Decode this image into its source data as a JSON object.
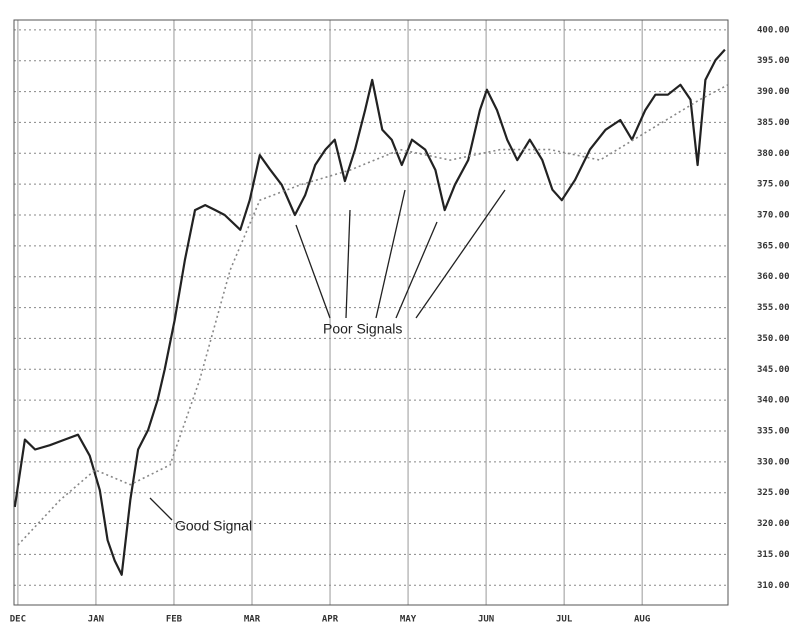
{
  "chart_data": {
    "type": "line",
    "xlim": [
      -0.05,
      9.1
    ],
    "ylim": [
      306.8,
      401.6
    ],
    "xticks": [
      {
        "value": 0,
        "label": "DEC"
      },
      {
        "value": 1,
        "label": "JAN"
      },
      {
        "value": 2,
        "label": "FEB"
      },
      {
        "value": 3,
        "label": "MAR"
      },
      {
        "value": 4,
        "label": "APR"
      },
      {
        "value": 5,
        "label": "MAY"
      },
      {
        "value": 6,
        "label": "JUN"
      },
      {
        "value": 7,
        "label": "JUL"
      },
      {
        "value": 8,
        "label": "AUG"
      }
    ],
    "yticks": [
      {
        "value": 400,
        "label": "400.00"
      },
      {
        "value": 395,
        "label": "395.00"
      },
      {
        "value": 390,
        "label": "390.00"
      },
      {
        "value": 385,
        "label": "385.00"
      },
      {
        "value": 380,
        "label": "380.00"
      },
      {
        "value": 375,
        "label": "375.00"
      },
      {
        "value": 370,
        "label": "370.00"
      },
      {
        "value": 365,
        "label": "365.00"
      },
      {
        "value": 360,
        "label": "360.00"
      },
      {
        "value": 355,
        "label": "355.00"
      },
      {
        "value": 350,
        "label": "350.00"
      },
      {
        "value": 345,
        "label": "345.00"
      },
      {
        "value": 340,
        "label": "340.00"
      },
      {
        "value": 335,
        "label": "335.00"
      },
      {
        "value": 330,
        "label": "330.00"
      },
      {
        "value": 325,
        "label": "325.00"
      },
      {
        "value": 320,
        "label": "320.00"
      },
      {
        "value": 315,
        "label": "315.00"
      },
      {
        "value": 310,
        "label": "310.00"
      }
    ],
    "grid": true,
    "series": [
      {
        "color": "#222222",
        "style": "solid",
        "x": [
          -0.04,
          0.09,
          0.22,
          0.41,
          0.6,
          0.77,
          0.92,
          1.05,
          1.15,
          1.24,
          1.33,
          1.44,
          1.54,
          1.67,
          1.79,
          1.88,
          2.01,
          2.14,
          2.27,
          2.4,
          2.53,
          2.65,
          2.85,
          2.97,
          3.1,
          3.23,
          3.38,
          3.55,
          3.68,
          3.81,
          3.94,
          4.06,
          4.19,
          4.32,
          4.45,
          4.54,
          4.67,
          4.79,
          4.92,
          5.05,
          5.22,
          5.35,
          5.47,
          5.6,
          5.77,
          5.92,
          6.01,
          6.14,
          6.27,
          6.4,
          6.56,
          6.72,
          6.85,
          6.97,
          7.14,
          7.33,
          7.53,
          7.72,
          7.87,
          8.04,
          8.17,
          8.33,
          8.49,
          8.62,
          8.71,
          8.81,
          8.94,
          9.06
        ],
        "values": [
          322.7,
          333.6,
          332,
          332.7,
          333.6,
          334.4,
          331,
          325.4,
          317.3,
          314,
          311.7,
          323.8,
          332,
          335.2,
          340,
          344.9,
          353,
          362.7,
          370.8,
          371.6,
          370.8,
          370,
          367.6,
          372.4,
          379.7,
          377.4,
          374.9,
          370,
          373.2,
          378.1,
          380.6,
          382.2,
          375.5,
          380.6,
          387,
          391.9,
          383.8,
          382.2,
          378.1,
          382.2,
          380.6,
          377.3,
          370.8,
          374.9,
          378.9,
          387,
          390.3,
          387,
          382.2,
          378.9,
          382.2,
          378.9,
          374.1,
          372.4,
          375.7,
          380.6,
          383.8,
          385.4,
          382.2,
          387,
          389.5,
          389.5,
          391.1,
          388.7,
          378.1,
          391.9,
          395.1,
          396.8
        ]
      },
      {
        "color": "#888888",
        "style": "dotted",
        "x": [
          0,
          0.54,
          0.99,
          1.44,
          1.95,
          2.33,
          2.72,
          3.1,
          3.62,
          4.26,
          4.9,
          5.54,
          6.18,
          6.82,
          7.46,
          8.1,
          8.74,
          9.1
        ],
        "values": [
          316.5,
          323.8,
          328.7,
          326.3,
          329.5,
          343.3,
          361.1,
          372.4,
          374.9,
          377.3,
          380.6,
          378.9,
          380.6,
          380.6,
          378.9,
          383.8,
          388.7,
          391.1
        ]
      }
    ],
    "annotations": [
      "Poor Signals",
      "Good Signal"
    ]
  }
}
